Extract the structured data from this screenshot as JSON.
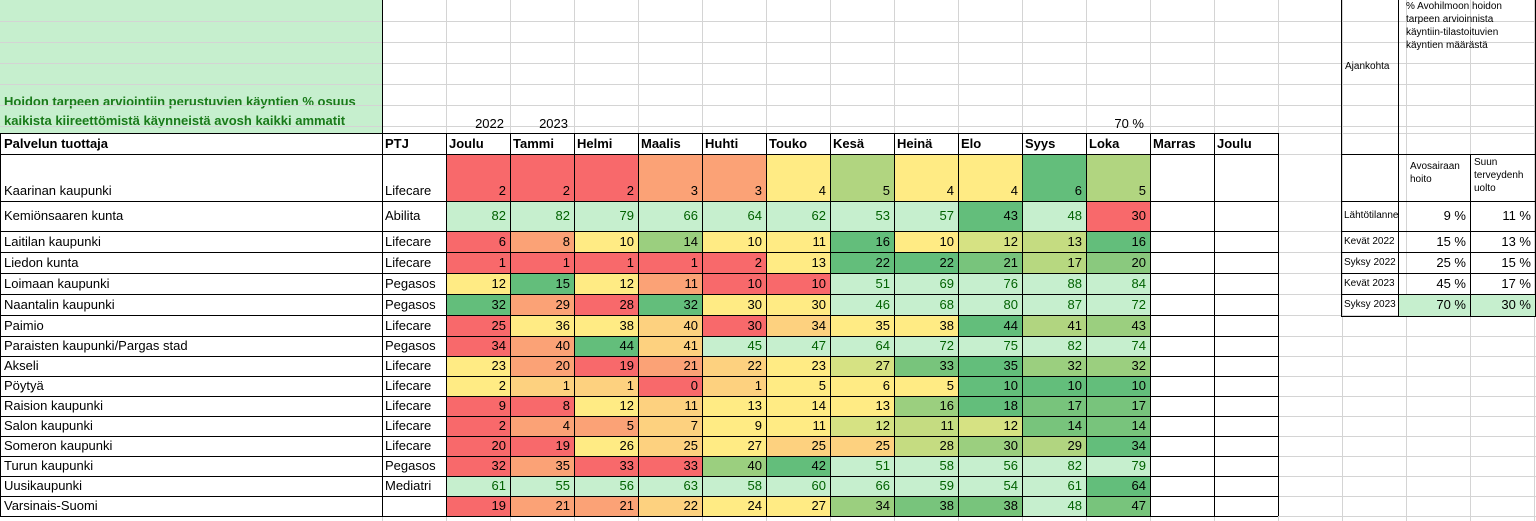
{
  "title": {
    "line1": "Hoidon tarpeen arviointiin perustuvien käyntien % osuus",
    "line2": "kaikista kiireettömistä käynneistä avosh kaikki ammatit"
  },
  "years": {
    "y2022": "2022",
    "y2023": "2023",
    "target": "70 %"
  },
  "header": {
    "provider": "Palvelun tuottaja",
    "ptj": "PTJ",
    "months": [
      "Joulu",
      "Tammi",
      "Helmi",
      "Maalis",
      "Huhti",
      "Touko",
      "Kesä",
      "Heinä",
      "Elo",
      "Syys",
      "Loka",
      "Marras",
      "Joulu"
    ]
  },
  "rows": [
    {
      "name": "Kaarinan kaupunki",
      "ptj": "Lifecare",
      "values": [
        "2",
        "2",
        "2",
        "3",
        "3",
        "4",
        "5",
        "4",
        "4",
        "6",
        "5"
      ]
    },
    {
      "name": "Kemiönsaaren kunta",
      "ptj": "Abilita",
      "values": [
        "82",
        "82",
        "79",
        "66",
        "64",
        "62",
        "53",
        "57",
        "43",
        "48",
        "30"
      ]
    },
    {
      "name": "Laitilan kaupunki",
      "ptj": "Lifecare",
      "values": [
        "6",
        "8",
        "10",
        "14",
        "10",
        "11",
        "16",
        "10",
        "12",
        "13",
        "16"
      ]
    },
    {
      "name": "Liedon kunta",
      "ptj": "Lifecare",
      "values": [
        "1",
        "1",
        "1",
        "1",
        "2",
        "13",
        "22",
        "22",
        "21",
        "17",
        "20"
      ]
    },
    {
      "name": "Loimaan kaupunki",
      "ptj": "Pegasos",
      "values": [
        "12",
        "15",
        "12",
        "11",
        "10",
        "10",
        "51",
        "69",
        "76",
        "88",
        "84"
      ]
    },
    {
      "name": "Naantalin kaupunki",
      "ptj": "Pegasos",
      "values": [
        "32",
        "29",
        "28",
        "32",
        "30",
        "30",
        "46",
        "68",
        "80",
        "87",
        "72"
      ]
    },
    {
      "name": "Paimio",
      "ptj": "Lifecare",
      "values": [
        "25",
        "36",
        "38",
        "40",
        "30",
        "34",
        "35",
        "38",
        "44",
        "41",
        "43"
      ]
    },
    {
      "name": "Paraisten kaupunki/Pargas stad",
      "ptj": "Pegasos",
      "values": [
        "34",
        "40",
        "44",
        "41",
        "45",
        "47",
        "64",
        "72",
        "75",
        "82",
        "74"
      ]
    },
    {
      "name": "Akseli",
      "ptj": "Lifecare",
      "values": [
        "23",
        "20",
        "19",
        "21",
        "22",
        "23",
        "27",
        "33",
        "35",
        "32",
        "32"
      ]
    },
    {
      "name": "Pöytyä",
      "ptj": "Lifecare",
      "values": [
        "2",
        "1",
        "1",
        "0",
        "1",
        "5",
        "6",
        "5",
        "10",
        "10",
        "10"
      ]
    },
    {
      "name": "Raision kaupunki",
      "ptj": "Lifecare",
      "values": [
        "9",
        "8",
        "12",
        "11",
        "13",
        "14",
        "13",
        "16",
        "18",
        "17",
        "17"
      ]
    },
    {
      "name": "Salon kaupunki",
      "ptj": "Lifecare",
      "values": [
        "2",
        "4",
        "5",
        "7",
        "9",
        "11",
        "12",
        "11",
        "12",
        "14",
        "14"
      ]
    },
    {
      "name": "Someron kaupunki",
      "ptj": "Lifecare",
      "values": [
        "20",
        "19",
        "26",
        "25",
        "27",
        "25",
        "25",
        "28",
        "30",
        "29",
        "34"
      ]
    },
    {
      "name": "Turun kaupunki",
      "ptj": "Pegasos",
      "values": [
        "32",
        "35",
        "33",
        "33",
        "40",
        "42",
        "51",
        "58",
        "56",
        "82",
        "79"
      ]
    },
    {
      "name": "Uusikaupunki",
      "ptj": "Mediatri",
      "values": [
        "61",
        "55",
        "56",
        "63",
        "58",
        "60",
        "66",
        "59",
        "54",
        "61",
        "64"
      ]
    },
    {
      "name": "Varsinais-Suomi",
      "ptj": "",
      "values": [
        "19",
        "21",
        "21",
        "22",
        "24",
        "27",
        "34",
        "38",
        "38",
        "48",
        "47"
      ]
    }
  ],
  "colors": [
    [
      "#f8696b",
      "#f8696b",
      "#f8696b",
      "#fba276",
      "#fba276",
      "#ffeb84",
      "#b1d580",
      "#ffeb84",
      "#ffeb84",
      "#63be7b",
      "#b1d580"
    ],
    [
      "#c6efce",
      "#c6efce",
      "#c6efce",
      "#c6efce",
      "#c6efce",
      "#c6efce",
      "#c6efce",
      "#c6efce",
      "#63be7b",
      "#c6efce",
      "#f8696b"
    ],
    [
      "#f8696b",
      "#fba276",
      "#ffeb84",
      "#9bcf7f",
      "#ffeb84",
      "#ffeb84",
      "#63be7b",
      "#ffeb84",
      "#d6e283",
      "#c5dc81",
      "#63be7b"
    ],
    [
      "#f8696b",
      "#f8696b",
      "#f8696b",
      "#f8696b",
      "#f8696b",
      "#ffeb84",
      "#63be7b",
      "#63be7b",
      "#78c47c",
      "#b7d880",
      "#8ac97e"
    ],
    [
      "#ffeb84",
      "#63be7b",
      "#ffeb84",
      "#fba276",
      "#f8696b",
      "#f8696b",
      "#c6efce",
      "#c6efce",
      "#c6efce",
      "#c6efce",
      "#c6efce"
    ],
    [
      "#63be7b",
      "#fba276",
      "#f8696b",
      "#63be7b",
      "#ffeb84",
      "#ffeb84",
      "#c6efce",
      "#c6efce",
      "#c6efce",
      "#c6efce",
      "#c6efce"
    ],
    [
      "#f8696b",
      "#ffeb84",
      "#ffeb84",
      "#fdd17f",
      "#f8696b",
      "#fdd17f",
      "#ffeb84",
      "#ffeb84",
      "#63be7b",
      "#b1d580",
      "#9bcf7f"
    ],
    [
      "#f8696b",
      "#fba276",
      "#63be7b",
      "#fdd17f",
      "#c6efce",
      "#c6efce",
      "#c6efce",
      "#c6efce",
      "#c6efce",
      "#c6efce",
      "#c6efce"
    ],
    [
      "#ffeb84",
      "#fba276",
      "#f8696b",
      "#fba276",
      "#fdd17f",
      "#ffeb84",
      "#d6e283",
      "#78c47c",
      "#63be7b",
      "#9bcf7f",
      "#9bcf7f"
    ],
    [
      "#ffeb84",
      "#fdd17f",
      "#fdd17f",
      "#f8696b",
      "#fdd17f",
      "#ffeb84",
      "#ffeb84",
      "#ffeb84",
      "#63be7b",
      "#63be7b",
      "#63be7b"
    ],
    [
      "#f8696b",
      "#f8696b",
      "#ffeb84",
      "#fdd17f",
      "#ffeb84",
      "#ffeb84",
      "#ffeb84",
      "#9bcf7f",
      "#63be7b",
      "#78c47c",
      "#78c47c"
    ],
    [
      "#f8696b",
      "#fba276",
      "#fba276",
      "#fdd17f",
      "#ffeb84",
      "#ffeb84",
      "#d6e283",
      "#c5dc81",
      "#d6e283",
      "#78c47c",
      "#78c47c"
    ],
    [
      "#f8696b",
      "#f8696b",
      "#ffeb84",
      "#fdd17f",
      "#ffeb84",
      "#fdd17f",
      "#fdd17f",
      "#c5dc81",
      "#9bcf7f",
      "#b1d580",
      "#63be7b"
    ],
    [
      "#f8696b",
      "#fba276",
      "#f8696b",
      "#f8696b",
      "#9bcf7f",
      "#63be7b",
      "#c6efce",
      "#c6efce",
      "#c6efce",
      "#c6efce",
      "#c6efce"
    ],
    [
      "#c6efce",
      "#c6efce",
      "#c6efce",
      "#c6efce",
      "#c6efce",
      "#c6efce",
      "#c6efce",
      "#c6efce",
      "#c6efce",
      "#c6efce",
      "#63be7b"
    ],
    [
      "#f8696b",
      "#fba276",
      "#fba276",
      "#fdd17f",
      "#ffeb84",
      "#ffeb84",
      "#9bcf7f",
      "#78c47c",
      "#78c47c",
      "#c6efce",
      "#78c47c"
    ]
  ],
  "side": {
    "ajankohta": "Ajankohta",
    "pct_header": "% Avohilmoon hoidon tarpeen arvioinnista käyntiin-tilastoituvien käyntien määrästä",
    "col1": "Avosairaan hoito",
    "col2": "Suun terveydenh uolto",
    "rows": [
      {
        "label": "Lähtötilanne",
        "v1": "9 %",
        "v2": "11 %"
      },
      {
        "label": "Kevät 2022",
        "v1": "15 %",
        "v2": "13 %"
      },
      {
        "label": "Syksy 2022",
        "v1": "25 %",
        "v2": "15 %"
      },
      {
        "label": "Kevät 2023",
        "v1": "45 %",
        "v2": "17 %"
      },
      {
        "label": "Syksy 2023",
        "v1": "70 %",
        "v2": "30 %"
      }
    ]
  }
}
